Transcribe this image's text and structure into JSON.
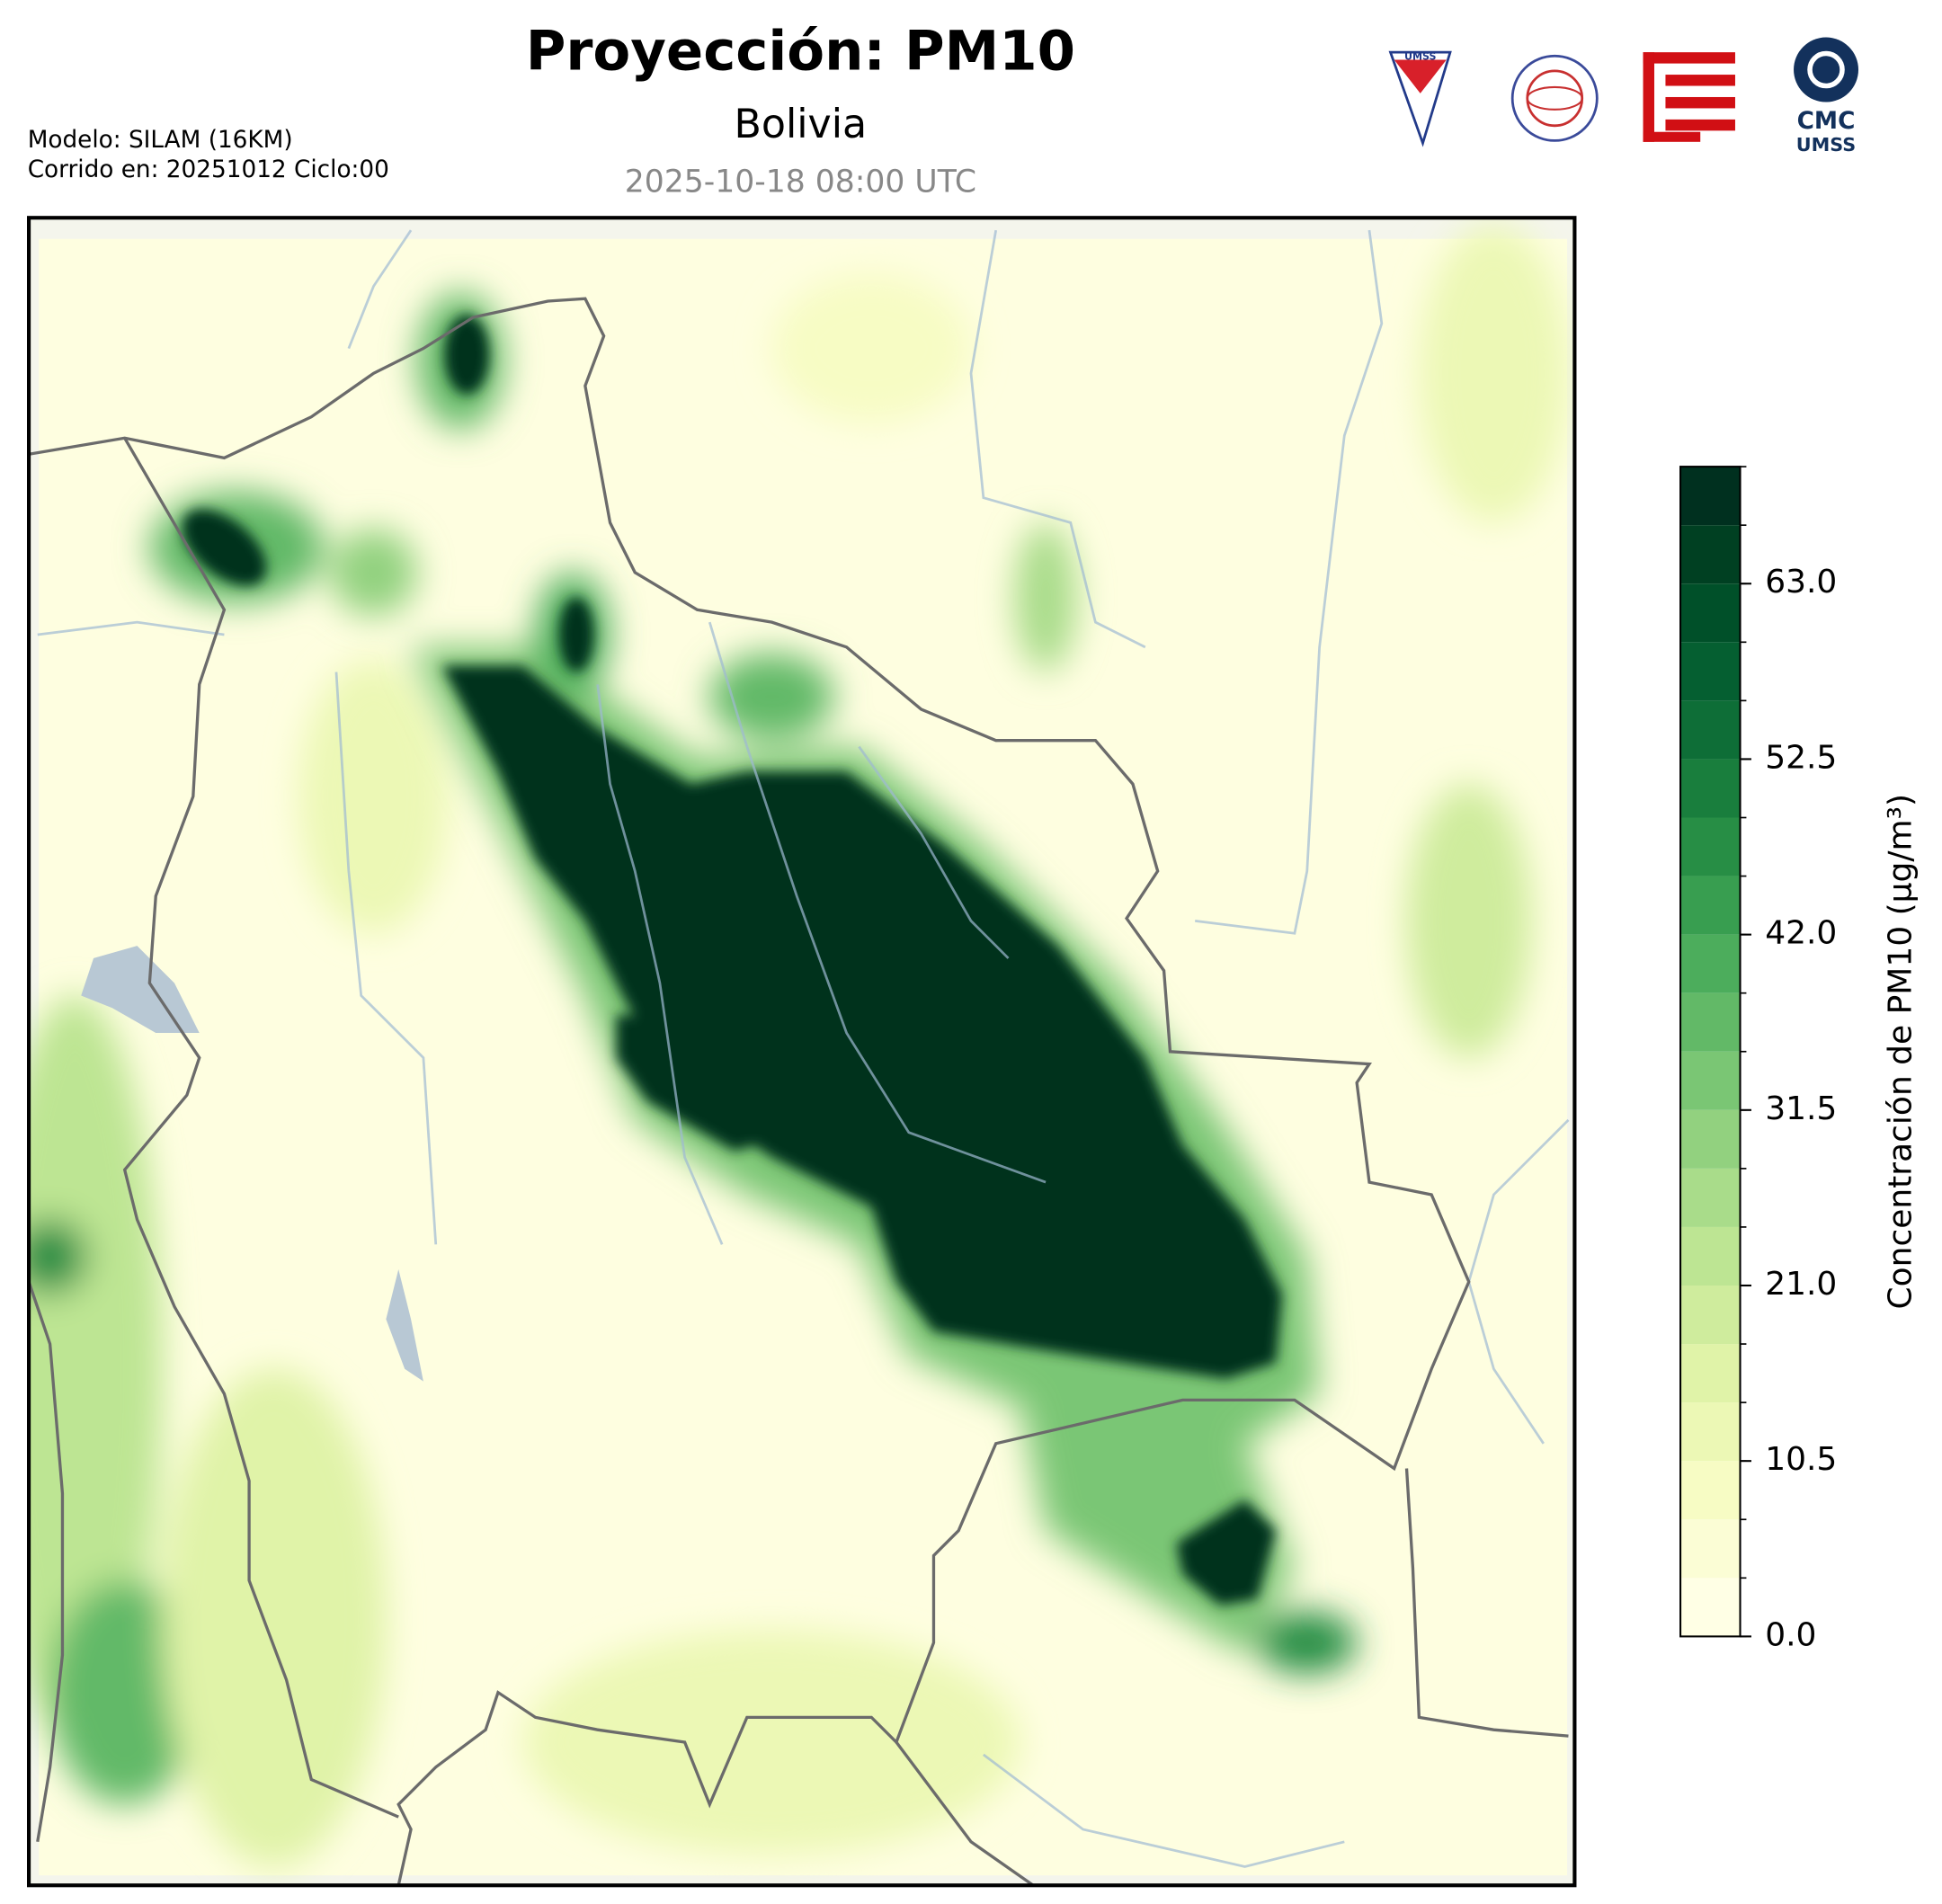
{
  "header": {
    "title": "Proyección: PM10",
    "subtitle": "Bolivia",
    "timestamp": "2025-10-18 08:00 UTC",
    "model": "Modelo: SILAM (16KM)",
    "run": "Corrido en: 20251012 Ciclo:00",
    "logos": {
      "shield": "UMSS",
      "cmc": "CMC",
      "cmc_sub": "UMSS"
    }
  },
  "colorbar": {
    "label": "Concentración de PM10 (µg/m³)",
    "lim": [
      0,
      70
    ],
    "levels": [
      0,
      3.5,
      7,
      10.5,
      14,
      17.5,
      21,
      24.5,
      28,
      31.5,
      35,
      38.5,
      42,
      45.5,
      49,
      52.5,
      56,
      59.5,
      63,
      66.5,
      70
    ],
    "colors": [
      "#ffffe5",
      "#fbfdd5",
      "#f7fcc4",
      "#ecf8b5",
      "#e0f3a8",
      "#cfec9d",
      "#bde593",
      "#a9dc8a",
      "#92d17f",
      "#7ac674",
      "#62b967",
      "#4cad5c",
      "#389e50",
      "#278e45",
      "#197e3d",
      "#0e6e37",
      "#055f31",
      "#005029",
      "#004022",
      "#00301f"
    ],
    "ticks": [
      {
        "value": 0,
        "label": "0.0"
      },
      10.5,
      {
        "value": 21,
        "label": "21.0"
      },
      31.5,
      {
        "value": 42,
        "label": "42.0"
      },
      52.5,
      {
        "value": 63,
        "label": "63.0"
      }
    ]
  }
}
